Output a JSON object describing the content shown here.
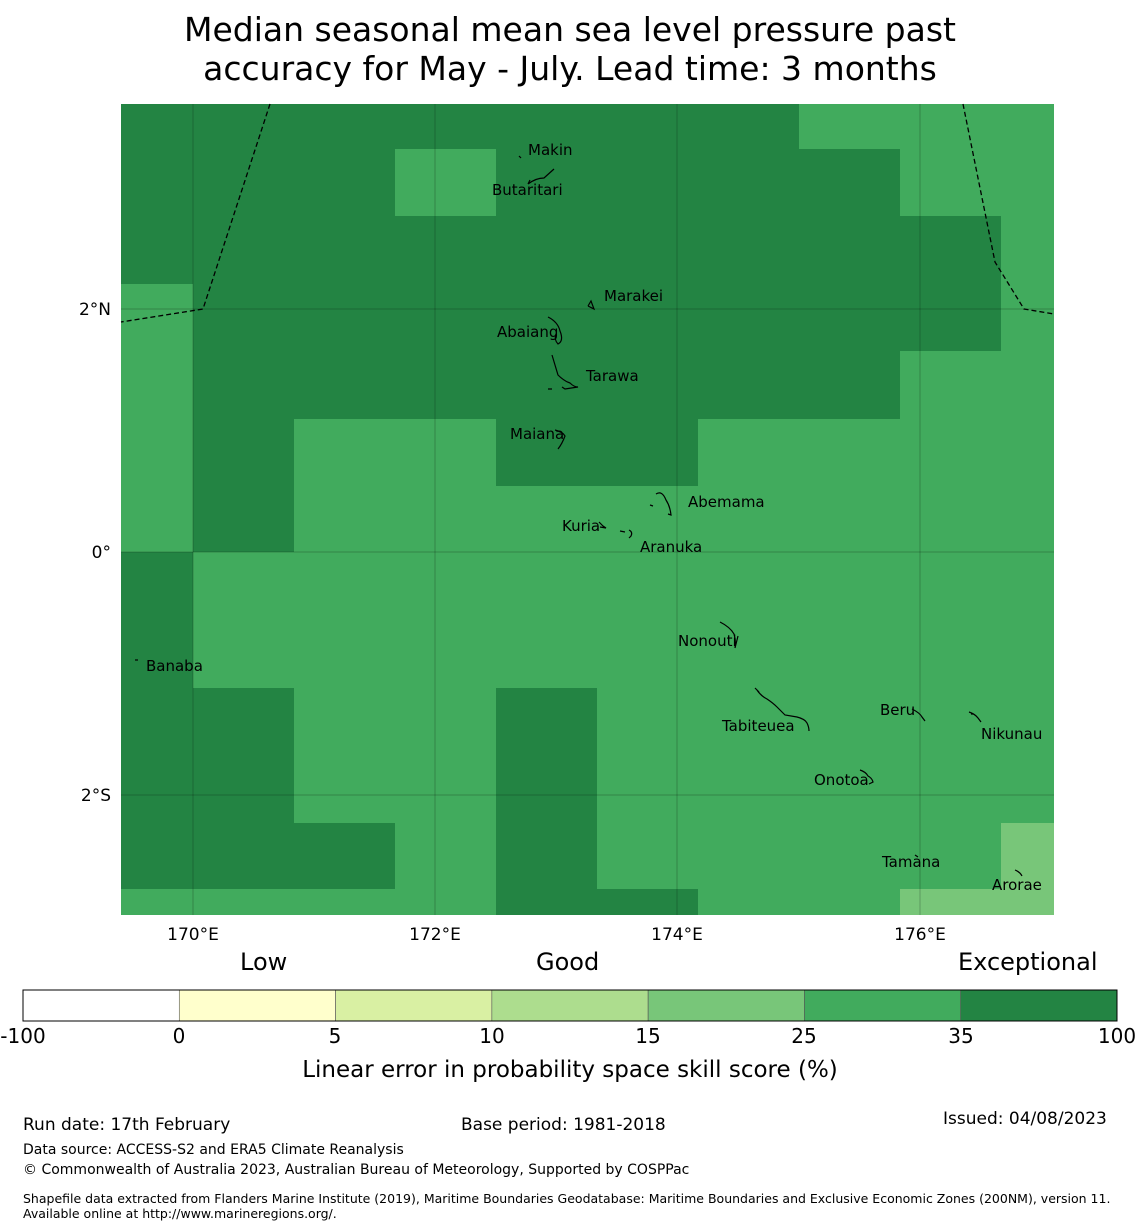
{
  "title": {
    "line1": "Median seasonal mean sea level pressure past",
    "line2": "accuracy for May - July. Lead time: 3 months"
  },
  "map": {
    "x_ticks": [
      "170°E",
      "172°E",
      "174°E",
      "176°E"
    ],
    "y_ticks": [
      "2°N",
      "0°",
      "2°S"
    ],
    "places": [
      "Makin",
      "Butaritari",
      "Marakei",
      "Abaiang",
      "Tarawa",
      "Maiana",
      "Abemama",
      "Kuria",
      "Aranuka",
      "Nonouti",
      "Banaba",
      "Beru",
      "Tabiteuea",
      "Nikunau",
      "Onotoa",
      "Tamana",
      "Arorae"
    ]
  },
  "colorbar": {
    "categories": [
      "Low",
      "Good",
      "Exceptional"
    ],
    "tick_labels": [
      "-100",
      "0",
      "5",
      "10",
      "15",
      "25",
      "35",
      "100"
    ],
    "label": "Linear error in probability space skill score (%)",
    "colors": [
      "#ffffff",
      "#ffffcc",
      "#d9f0a3",
      "#addd8e",
      "#78c679",
      "#41ab5d",
      "#238443"
    ]
  },
  "footer": {
    "run_date": "Run date: 17th February",
    "base_period": "Base period: 1981-2018",
    "issued": "Issued: 04/08/2023",
    "data_source": "Data source: ACCESS-S2 and ERA5 Climate Reanalysis",
    "copyright": "© Commonwealth of Australia 2023, Australian Bureau of Meteorology, Supported by COSPPac",
    "shapefile": "Shapefile data extracted from Flanders Marine Institute (2019), Maritime Boundaries Geodatabase: Maritime Boundaries and Exclusive Economic Zones (200NM), version 11. Available online at http://www.marineregions.org/."
  }
}
